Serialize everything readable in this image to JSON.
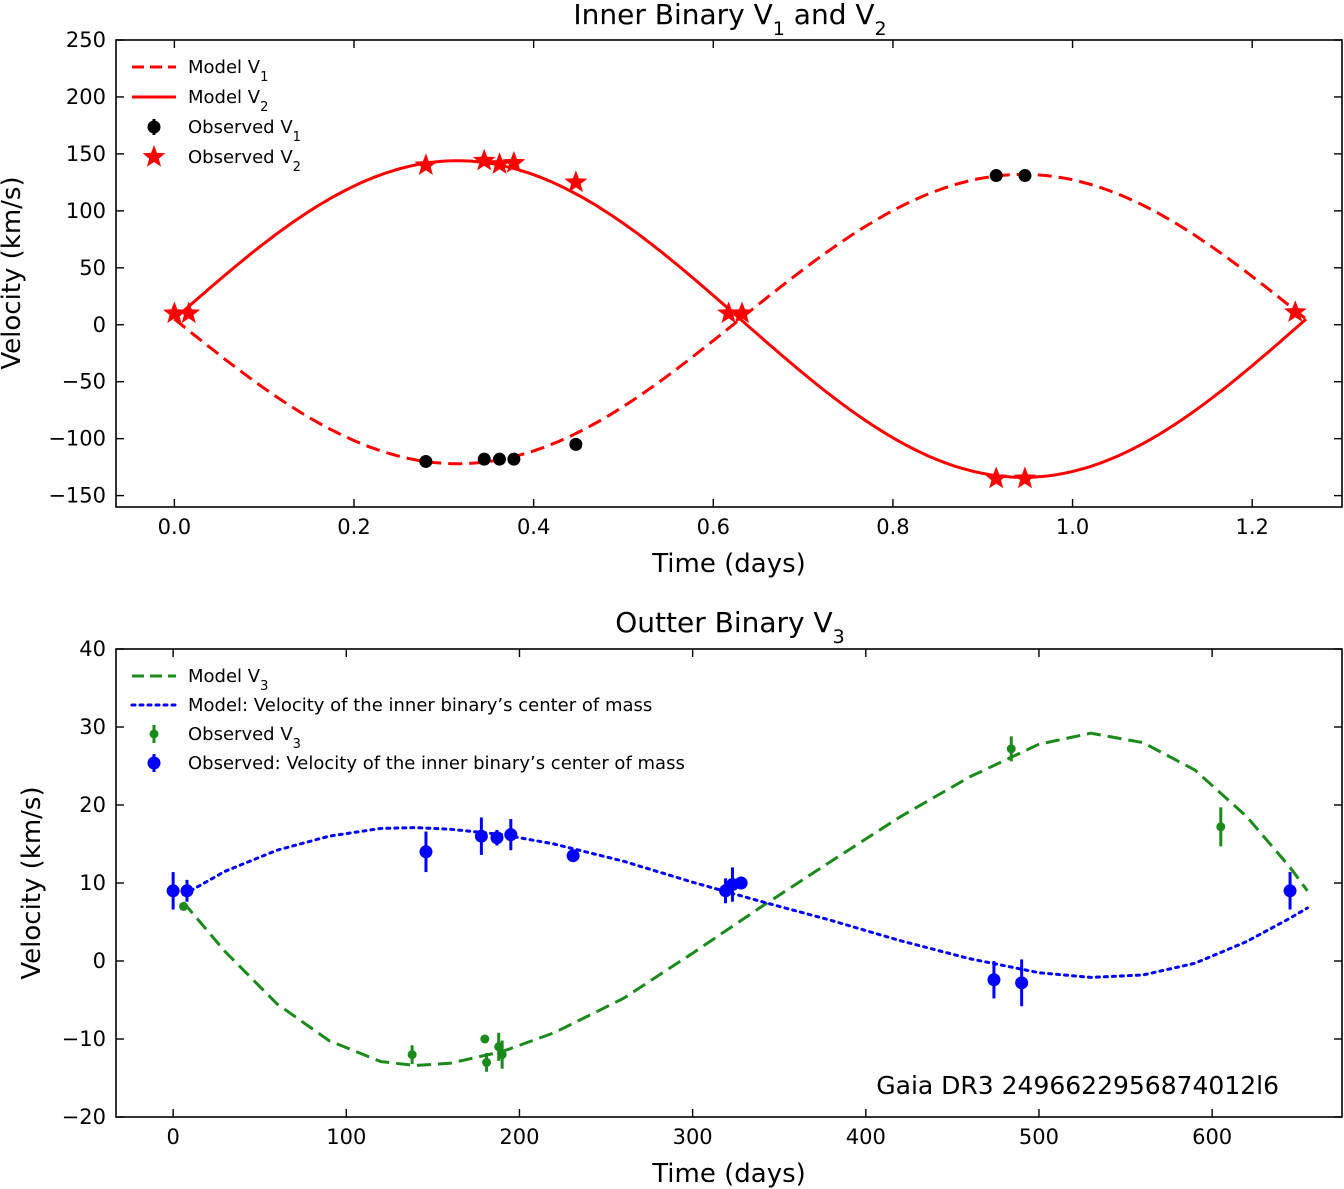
{
  "chart_data": [
    {
      "type": "line",
      "title": "Inner Binary V",
      "title_sub1": "1",
      "title_mid": " and V",
      "title_sub2": "2",
      "xlabel": "Time (days)",
      "ylabel": "Velocity (km/s)",
      "xlim": [
        -0.065,
        1.3
      ],
      "ylim": [
        -160,
        250
      ],
      "xticks": [
        0.0,
        0.2,
        0.4,
        0.6,
        0.8,
        1.0,
        1.2
      ],
      "xtick_labels": [
        "0.0",
        "0.2",
        "0.4",
        "0.6",
        "0.8",
        "1.0",
        "1.2"
      ],
      "yticks": [
        250,
        200,
        150,
        100,
        50,
        0,
        -50,
        -100,
        -150
      ],
      "ytick_labels": [
        "250",
        "200",
        "150",
        "100",
        "50",
        "0",
        "−50",
        "−100",
        "−150"
      ],
      "model": {
        "gamma": 5,
        "K1": 127,
        "K2": 139,
        "period": 1.26
      },
      "legend": [
        {
          "label": "Model V",
          "sub": "1",
          "style": "dashed",
          "color": "#ff0000"
        },
        {
          "label": "Model V",
          "sub": "2",
          "style": "solid",
          "color": "#ff0000"
        },
        {
          "label": "Observed V",
          "sub": "1",
          "style": "point",
          "color": "#000000"
        },
        {
          "label": "Observed V",
          "sub": "2",
          "style": "star",
          "color": "#ff0000"
        }
      ],
      "legend_position": "top-left",
      "series": [
        {
          "name": "Model V1",
          "kind": "model",
          "component": 1,
          "style": "dashed",
          "color": "#ff0000"
        },
        {
          "name": "Model V2",
          "kind": "model",
          "component": 2,
          "style": "solid",
          "color": "#ff0000"
        },
        {
          "name": "Observed V1",
          "kind": "points",
          "marker": "circle",
          "color": "#000000",
          "x": [
            0.28,
            0.345,
            0.362,
            0.378,
            0.447,
            0.915,
            0.947
          ],
          "y": [
            -120,
            -118,
            -118,
            -118,
            -105,
            131,
            131
          ]
        },
        {
          "name": "Observed V2",
          "kind": "points",
          "marker": "star",
          "color": "#ff0000",
          "x": [
            0.0,
            0.016,
            0.28,
            0.345,
            0.362,
            0.378,
            0.447,
            0.617,
            0.632,
            0.915,
            0.947,
            1.248
          ],
          "y": [
            10,
            10,
            140,
            144,
            141,
            142,
            125,
            10,
            10,
            -135,
            -135,
            11
          ]
        }
      ]
    },
    {
      "type": "line",
      "title": "Outter Binary V",
      "title_sub1": "3",
      "xlabel": "Time (days)",
      "ylabel": "Velocity (km/s)",
      "xlim": [
        -33,
        675
      ],
      "ylim": [
        -20,
        40
      ],
      "xticks": [
        0,
        100,
        200,
        300,
        400,
        500,
        600
      ],
      "xtick_labels": [
        "0",
        "100",
        "200",
        "300",
        "400",
        "500",
        "600"
      ],
      "yticks": [
        40,
        30,
        20,
        10,
        0,
        -10,
        -20
      ],
      "ytick_labels": [
        "40",
        "30",
        "20",
        "10",
        "0",
        "−10",
        "−20"
      ],
      "annotation": "Gaia DR3 2496622956874012l6",
      "legend": [
        {
          "label": "Model V",
          "sub": "3",
          "style": "dashed",
          "color": "#1a8a1a"
        },
        {
          "label": "Model: Velocity of the inner binary’s center of mass",
          "sub": "",
          "style": "dotted",
          "color": "#0000ff"
        },
        {
          "label": "Observed V",
          "sub": "3",
          "style": "errpoint-small",
          "color": "#1a8a1a"
        },
        {
          "label": "Observed: Velocity of the inner binary’s center of mass",
          "sub": "",
          "style": "errpoint",
          "color": "#0000ff"
        }
      ],
      "legend_position": "top-left",
      "series": [
        {
          "name": "Model V3",
          "kind": "curve",
          "style": "dashed",
          "color": "#1a8a1a",
          "x": [
            6,
            30,
            60,
            90,
            120,
            140,
            160,
            190,
            220,
            260,
            300,
            340,
            380,
            420,
            460,
            500,
            530,
            560,
            590,
            620,
            645,
            655
          ],
          "y": [
            7.5,
            1.2,
            -5.5,
            -10.2,
            -12.9,
            -13.4,
            -13.1,
            -11.6,
            -9.2,
            -4.8,
            1.0,
            7.0,
            12.8,
            18.5,
            23.6,
            27.8,
            29.2,
            28.0,
            24.5,
            18.5,
            12.0,
            9.0
          ]
        },
        {
          "name": "Model: Velocity of the inner binary's center of mass",
          "kind": "curve",
          "style": "dotted",
          "color": "#0000ff",
          "x": [
            6,
            30,
            60,
            90,
            120,
            140,
            160,
            190,
            220,
            260,
            300,
            340,
            380,
            420,
            460,
            500,
            530,
            560,
            590,
            620,
            645,
            655
          ],
          "y": [
            8.5,
            11.5,
            14.2,
            16.0,
            17.0,
            17.1,
            16.9,
            16.2,
            15.0,
            12.8,
            10.1,
            7.6,
            5.2,
            2.6,
            0.3,
            -1.5,
            -2.1,
            -1.8,
            -0.3,
            2.5,
            5.5,
            6.8
          ]
        },
        {
          "name": "Observed V3",
          "kind": "errpoints",
          "marker": "small",
          "color": "#1a8a1a",
          "x": [
            6,
            138,
            180,
            181,
            188,
            190,
            484,
            605
          ],
          "y": [
            7,
            -12,
            -10,
            -13,
            -11,
            -12,
            27.2,
            17.2
          ],
          "err": [
            0.5,
            1.2,
            0.3,
            1.2,
            1.8,
            1.8,
            1.6,
            2.5
          ]
        },
        {
          "name": "Observed: Velocity of the inner binary's center of mass",
          "kind": "errpoints",
          "marker": "large",
          "color": "#0000ff",
          "x": [
            0,
            8,
            146,
            178,
            187,
            195,
            231,
            319,
            323,
            328,
            474,
            490,
            645
          ],
          "y": [
            9.0,
            9.0,
            14.0,
            16.0,
            15.8,
            16.2,
            13.5,
            9.0,
            9.8,
            10.0,
            -2.4,
            -2.8,
            9.0
          ],
          "err": [
            2.4,
            1.4,
            2.6,
            2.4,
            1.0,
            2.0,
            0.6,
            1.6,
            2.2,
            0.4,
            2.4,
            3.0,
            2.4
          ]
        }
      ]
    }
  ]
}
